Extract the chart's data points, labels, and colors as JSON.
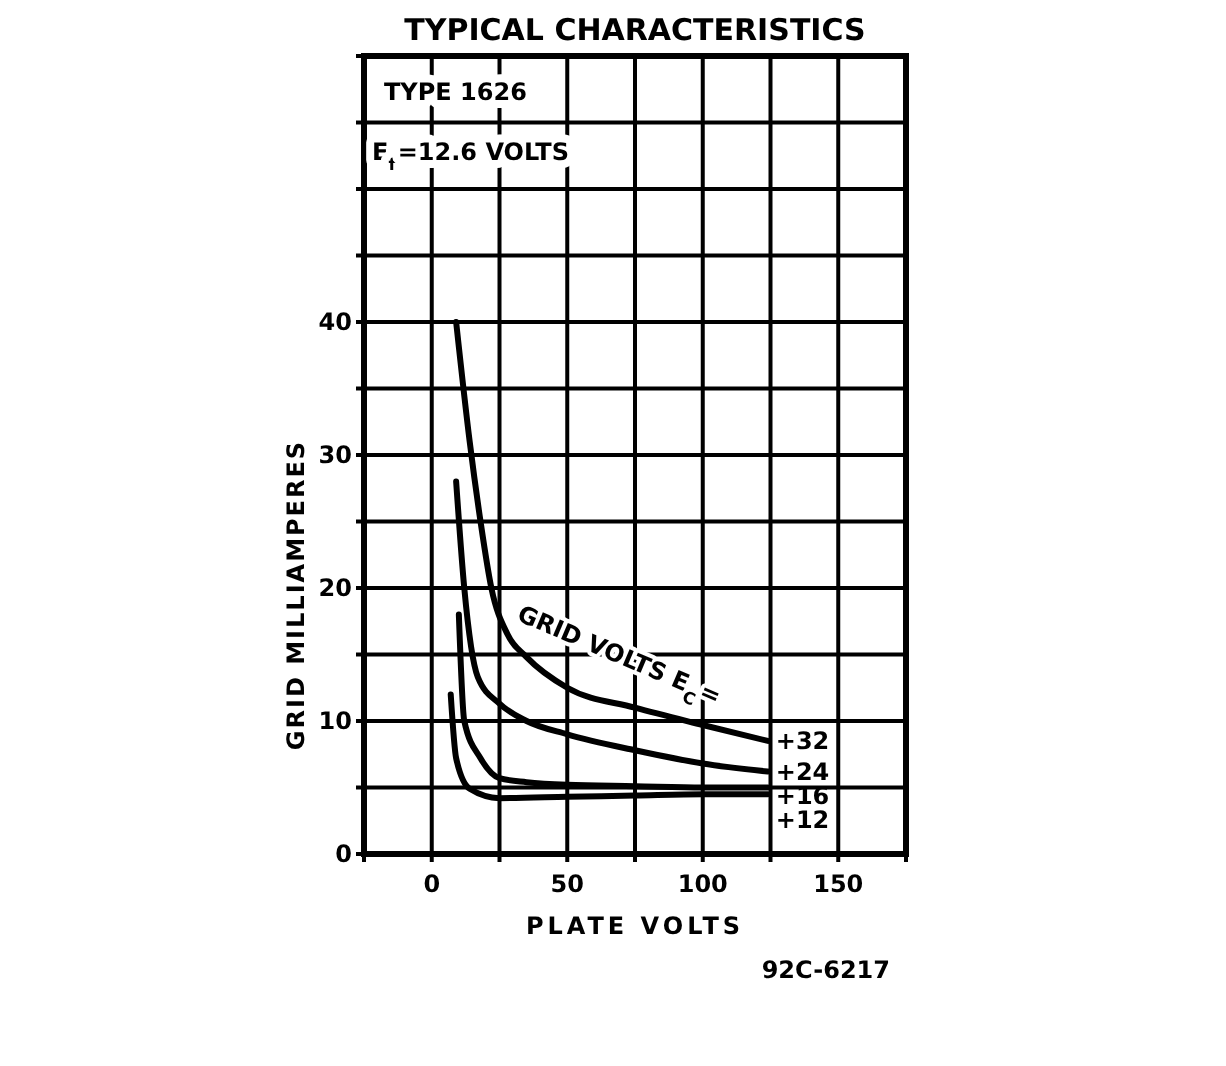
{
  "chart_data": {
    "type": "line",
    "title": "TYPICAL CHARACTERISTICS",
    "xlabel": "PLATE VOLTS",
    "ylabel": "GRID MILLIAMPERES",
    "annotations": [
      "TYPE 1626",
      "E$_{f}$=12.6 VOLTS",
      "GRID VOLTS E$_{C}$=",
      "92C-6217"
    ],
    "xlim": [
      -25,
      175
    ],
    "ylim": [
      0,
      60
    ],
    "xticks": [
      {
        "value": -25,
        "label": null
      },
      0,
      {
        "value": 25,
        "label": null
      },
      50,
      {
        "value": 75,
        "label": null
      },
      100,
      {
        "value": 125,
        "label": null
      },
      150,
      {
        "value": 175,
        "label": null
      }
    ],
    "yticks": [
      0,
      {
        "value": 5,
        "label": null
      },
      10,
      {
        "value": 15,
        "label": null
      },
      20,
      {
        "value": 25,
        "label": null
      },
      30,
      {
        "value": 35,
        "label": null
      },
      40,
      {
        "value": 45,
        "label": null
      },
      {
        "value": 50,
        "label": null
      },
      {
        "value": 55,
        "label": null
      },
      {
        "value": 60,
        "label": null
      }
    ],
    "grid": true,
    "marker": "none",
    "line_style": "solid",
    "series": [
      {
        "name": "+32",
        "color": "#000000",
        "x": [
          9,
          14,
          18,
          22,
          28,
          35,
          50,
          75,
          100,
          124
        ],
        "values": [
          40,
          31,
          25,
          20,
          16.5,
          14.8,
          12.5,
          11,
          9.7,
          8.5
        ]
      },
      {
        "name": "+24",
        "color": "#000000",
        "x": [
          9,
          12,
          17,
          25,
          35,
          50,
          75,
          100,
          124
        ],
        "values": [
          28,
          20,
          13.3,
          11.3,
          10,
          9,
          7.8,
          6.8,
          6.2
        ]
      },
      {
        "name": "+16",
        "color": "#000000",
        "x": [
          10,
          12,
          18,
          25,
          35,
          50,
          75,
          100,
          124
        ],
        "values": [
          18,
          10,
          7.2,
          5.7,
          5.4,
          5.2,
          5.1,
          5,
          5
        ]
      },
      {
        "name": "+12",
        "color": "#000000",
        "x": [
          7,
          9,
          14,
          25,
          50,
          75,
          100,
          124
        ],
        "values": [
          12,
          7.2,
          4.9,
          4.2,
          4.3,
          4.4,
          4.5,
          4.5
        ]
      }
    ]
  }
}
